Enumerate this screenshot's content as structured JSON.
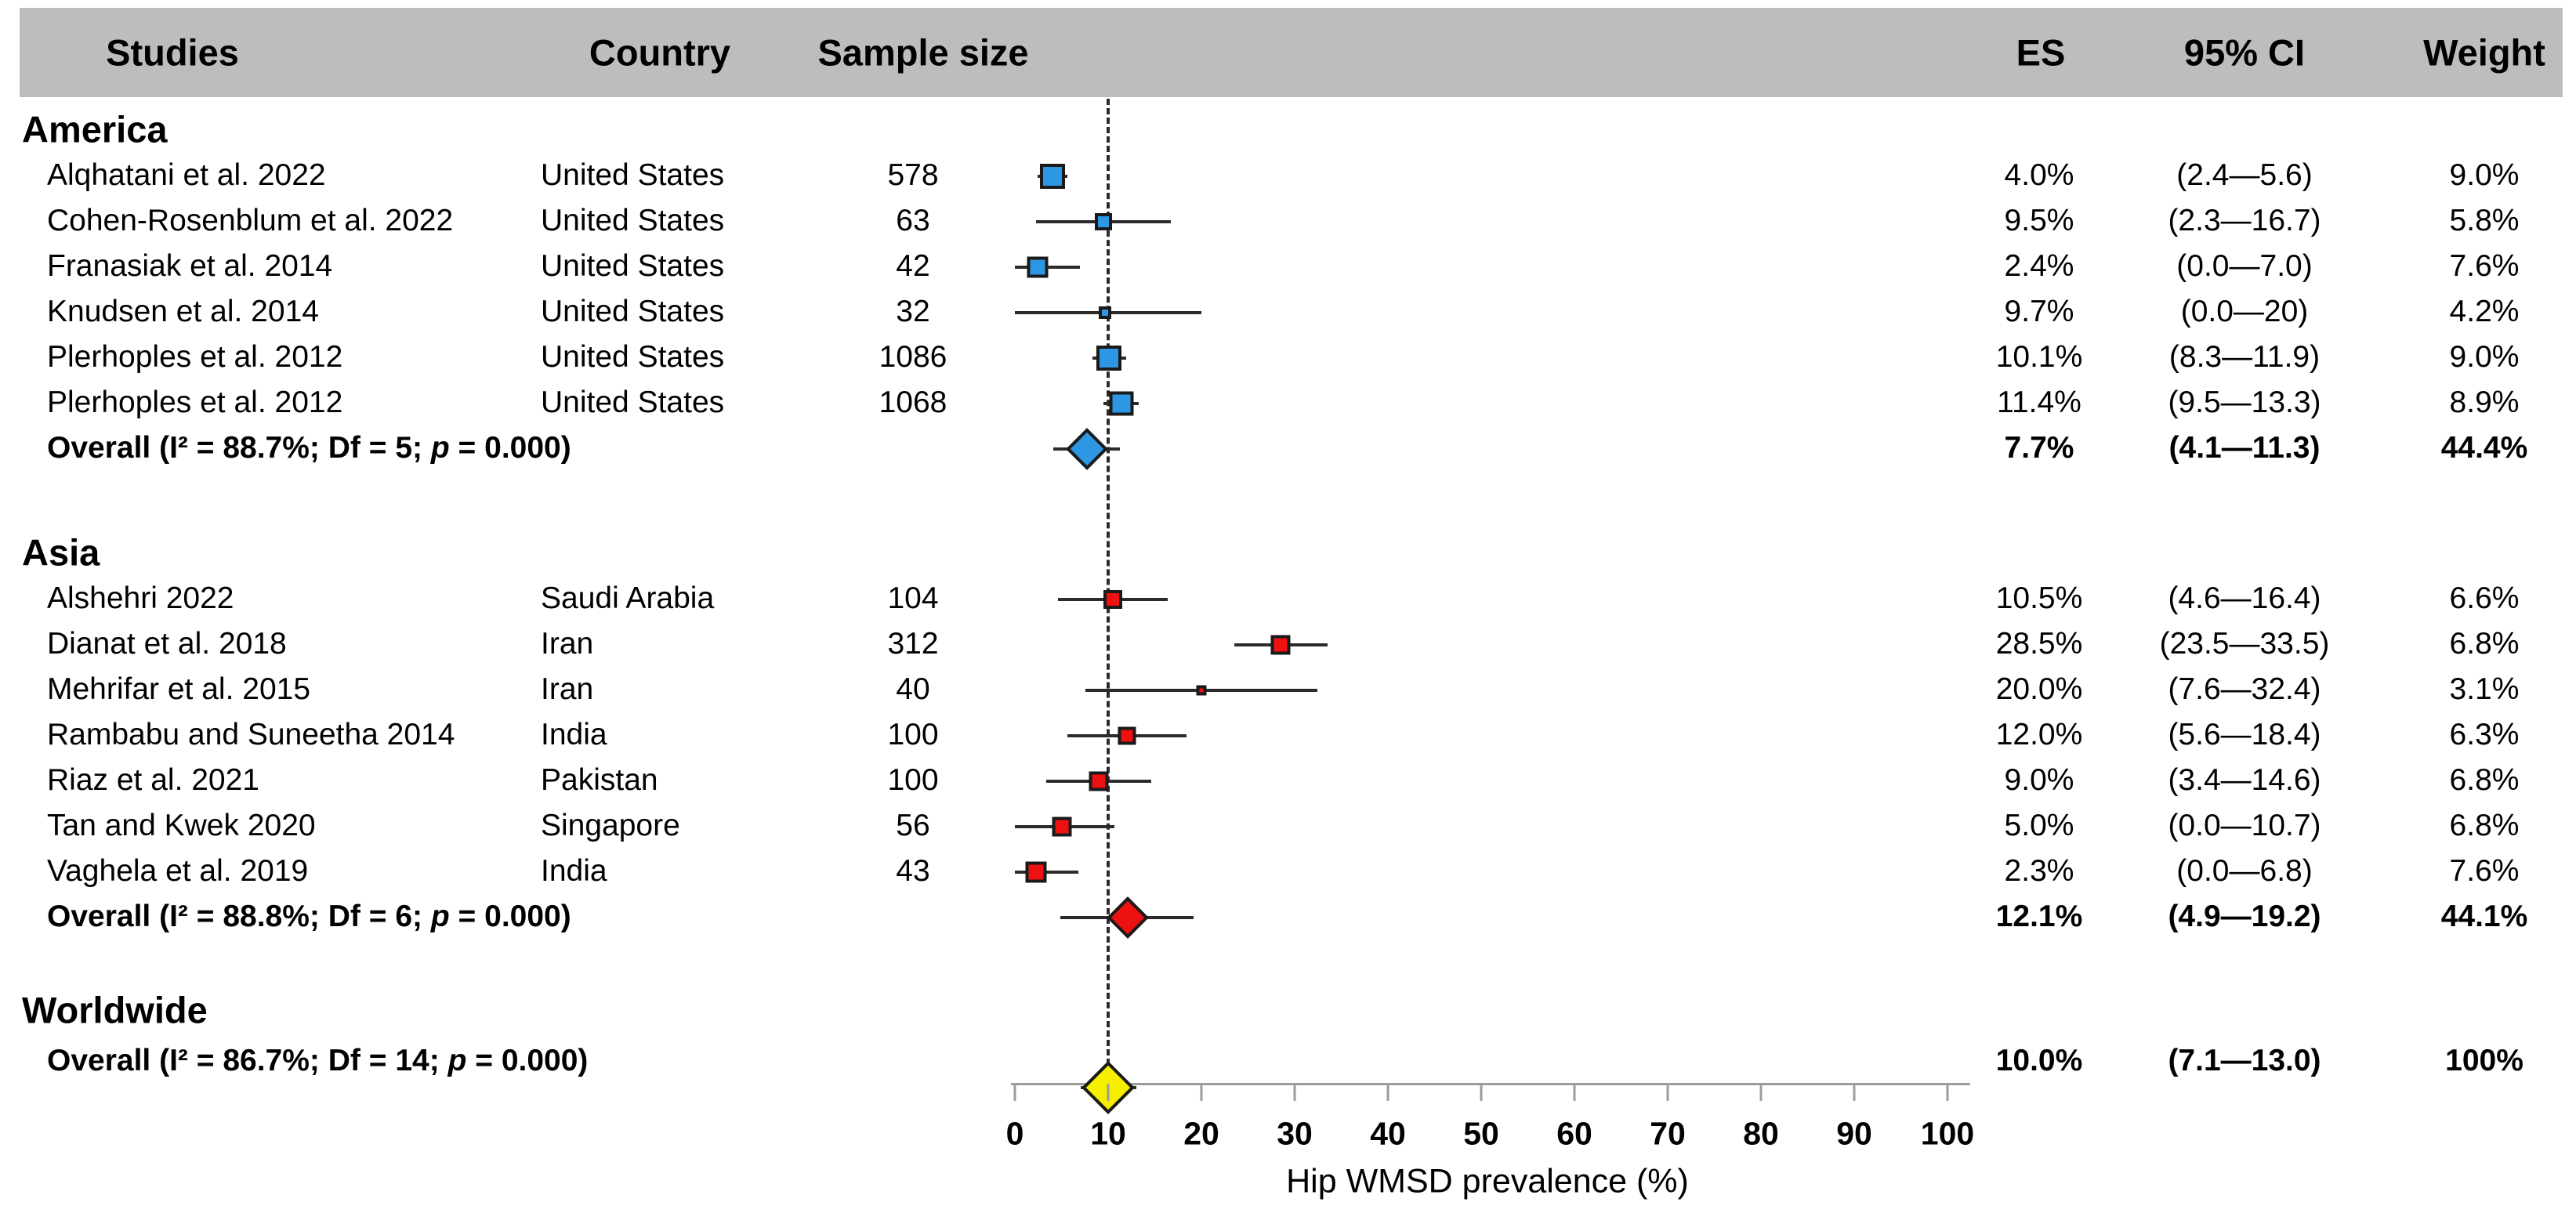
{
  "colors": {
    "america_marker": "#2E97E3",
    "asia_marker": "#EE1111",
    "worldwide_marker": "#F7EF00",
    "marker_border": "#1A1A1A",
    "header_bg": "#BDBDBD",
    "axis_gray": "#9C9C9C",
    "ci_line": "#2B2B2B",
    "text": "#000000"
  },
  "header": {
    "studies": "Studies",
    "country": "Country",
    "sample_size": "Sample size",
    "es": "ES",
    "ci": "95% CI",
    "weight": "Weight"
  },
  "chart_data": {
    "type": "forest",
    "xlabel": "Hip WMSD prevalence (%)",
    "axis": {
      "min": 0,
      "max": 100,
      "ticks": [
        0,
        10,
        20,
        30,
        40,
        50,
        60,
        70,
        80,
        90,
        100
      ],
      "label": "Hip WMSD prevalence (%)",
      "reference_value": 10.0,
      "grid": false
    },
    "sections": [
      {
        "name": "America",
        "color": "#2E97E3",
        "rows": [
          {
            "study": "Alqhatani et al. 2022",
            "country": "United States",
            "sample_size": "578",
            "es": 4.0,
            "es_label": "4.0%",
            "ci_lo": 2.4,
            "ci_hi": 5.6,
            "ci_label": "(2.4—5.6)",
            "weight": 9.0,
            "weight_label": "9.0%"
          },
          {
            "study": "Cohen-Rosenblum et al. 2022",
            "country": "United States",
            "sample_size": "63",
            "es": 9.5,
            "es_label": "9.5%",
            "ci_lo": 2.3,
            "ci_hi": 16.7,
            "ci_label": "(2.3—16.7)",
            "weight": 5.8,
            "weight_label": "5.8%"
          },
          {
            "study": "Franasiak et al. 2014",
            "country": "United States",
            "sample_size": "42",
            "es": 2.4,
            "es_label": "2.4%",
            "ci_lo": 0.0,
            "ci_hi": 7.0,
            "ci_label": "(0.0—7.0)",
            "weight": 7.6,
            "weight_label": "7.6%"
          },
          {
            "study": "Knudsen et al. 2014",
            "country": "United States",
            "sample_size": "32",
            "es": 9.7,
            "es_label": "9.7%",
            "ci_lo": 0.0,
            "ci_hi": 20.0,
            "ci_label": "(0.0—20)",
            "weight": 4.2,
            "weight_label": "4.2%"
          },
          {
            "study": "Plerhoples et al. 2012",
            "country": "United States",
            "sample_size": "1086",
            "es": 10.1,
            "es_label": "10.1%",
            "ci_lo": 8.3,
            "ci_hi": 11.9,
            "ci_label": "(8.3—11.9)",
            "weight": 9.0,
            "weight_label": "9.0%"
          },
          {
            "study": "Plerhoples et al. 2012",
            "country": "United States",
            "sample_size": "1068",
            "es": 11.4,
            "es_label": "11.4%",
            "ci_lo": 9.5,
            "ci_hi": 13.3,
            "ci_label": "(9.5—13.3)",
            "weight": 8.9,
            "weight_label": "8.9%"
          }
        ],
        "overall": {
          "label_pre": "Overall (I² = 88.7%; Df = 5; ",
          "label_p": "p",
          "label_post": " = 0.000)",
          "es": 7.7,
          "es_label": "7.7%",
          "ci_lo": 4.1,
          "ci_hi": 11.3,
          "ci_label": "(4.1—11.3)",
          "weight": 44.4,
          "weight_label": "44.4%"
        }
      },
      {
        "name": "Asia",
        "color": "#EE1111",
        "rows": [
          {
            "study": "Alshehri 2022",
            "country": "Saudi Arabia",
            "sample_size": "104",
            "es": 10.5,
            "es_label": "10.5%",
            "ci_lo": 4.6,
            "ci_hi": 16.4,
            "ci_label": "(4.6—16.4)",
            "weight": 6.6,
            "weight_label": "6.6%"
          },
          {
            "study": "Dianat et al. 2018",
            "country": "Iran",
            "sample_size": "312",
            "es": 28.5,
            "es_label": "28.5%",
            "ci_lo": 23.5,
            "ci_hi": 33.5,
            "ci_label": "(23.5—33.5)",
            "weight": 6.8,
            "weight_label": "6.8%"
          },
          {
            "study": "Mehrifar et al. 2015",
            "country": "Iran",
            "sample_size": "40",
            "es": 20.0,
            "es_label": "20.0%",
            "ci_lo": 7.6,
            "ci_hi": 32.4,
            "ci_label": "(7.6—32.4)",
            "weight": 3.1,
            "weight_label": "3.1%"
          },
          {
            "study": "Rambabu and Suneetha 2014",
            "country": "India",
            "sample_size": "100",
            "es": 12.0,
            "es_label": "12.0%",
            "ci_lo": 5.6,
            "ci_hi": 18.4,
            "ci_label": "(5.6—18.4)",
            "weight": 6.3,
            "weight_label": "6.3%"
          },
          {
            "study": "Riaz et al. 2021",
            "country": "Pakistan",
            "sample_size": "100",
            "es": 9.0,
            "es_label": "9.0%",
            "ci_lo": 3.4,
            "ci_hi": 14.6,
            "ci_label": "(3.4—14.6)",
            "weight": 6.8,
            "weight_label": "6.8%"
          },
          {
            "study": "Tan and Kwek 2020",
            "country": "Singapore",
            "sample_size": "56",
            "es": 5.0,
            "es_label": "5.0%",
            "ci_lo": 0.0,
            "ci_hi": 10.7,
            "ci_label": "(0.0—10.7)",
            "weight": 6.8,
            "weight_label": "6.8%"
          },
          {
            "study": "Vaghela et al. 2019",
            "country": "India",
            "sample_size": "43",
            "es": 2.3,
            "es_label": "2.3%",
            "ci_lo": 0.0,
            "ci_hi": 6.8,
            "ci_label": "(0.0—6.8)",
            "weight": 7.6,
            "weight_label": "7.6%"
          }
        ],
        "overall": {
          "label_pre": "Overall (I² = 88.8%; Df = 6; ",
          "label_p": "p",
          "label_post": " = 0.000)",
          "es": 12.1,
          "es_label": "12.1%",
          "ci_lo": 4.9,
          "ci_hi": 19.2,
          "ci_label": "(4.9—19.2)",
          "weight": 44.1,
          "weight_label": "44.1%"
        }
      },
      {
        "name": "Worldwide",
        "color": "#F7EF00",
        "rows": [],
        "overall": {
          "label_pre": "Overall (I² = 86.7%; Df = 14; ",
          "label_p": "p",
          "label_post": " = 0.000)",
          "es": 10.0,
          "es_label": "10.0%",
          "ci_lo": 7.1,
          "ci_hi": 13.0,
          "ci_label": "(7.1—13.0)",
          "weight": 100,
          "weight_label": "100%"
        }
      }
    ]
  }
}
